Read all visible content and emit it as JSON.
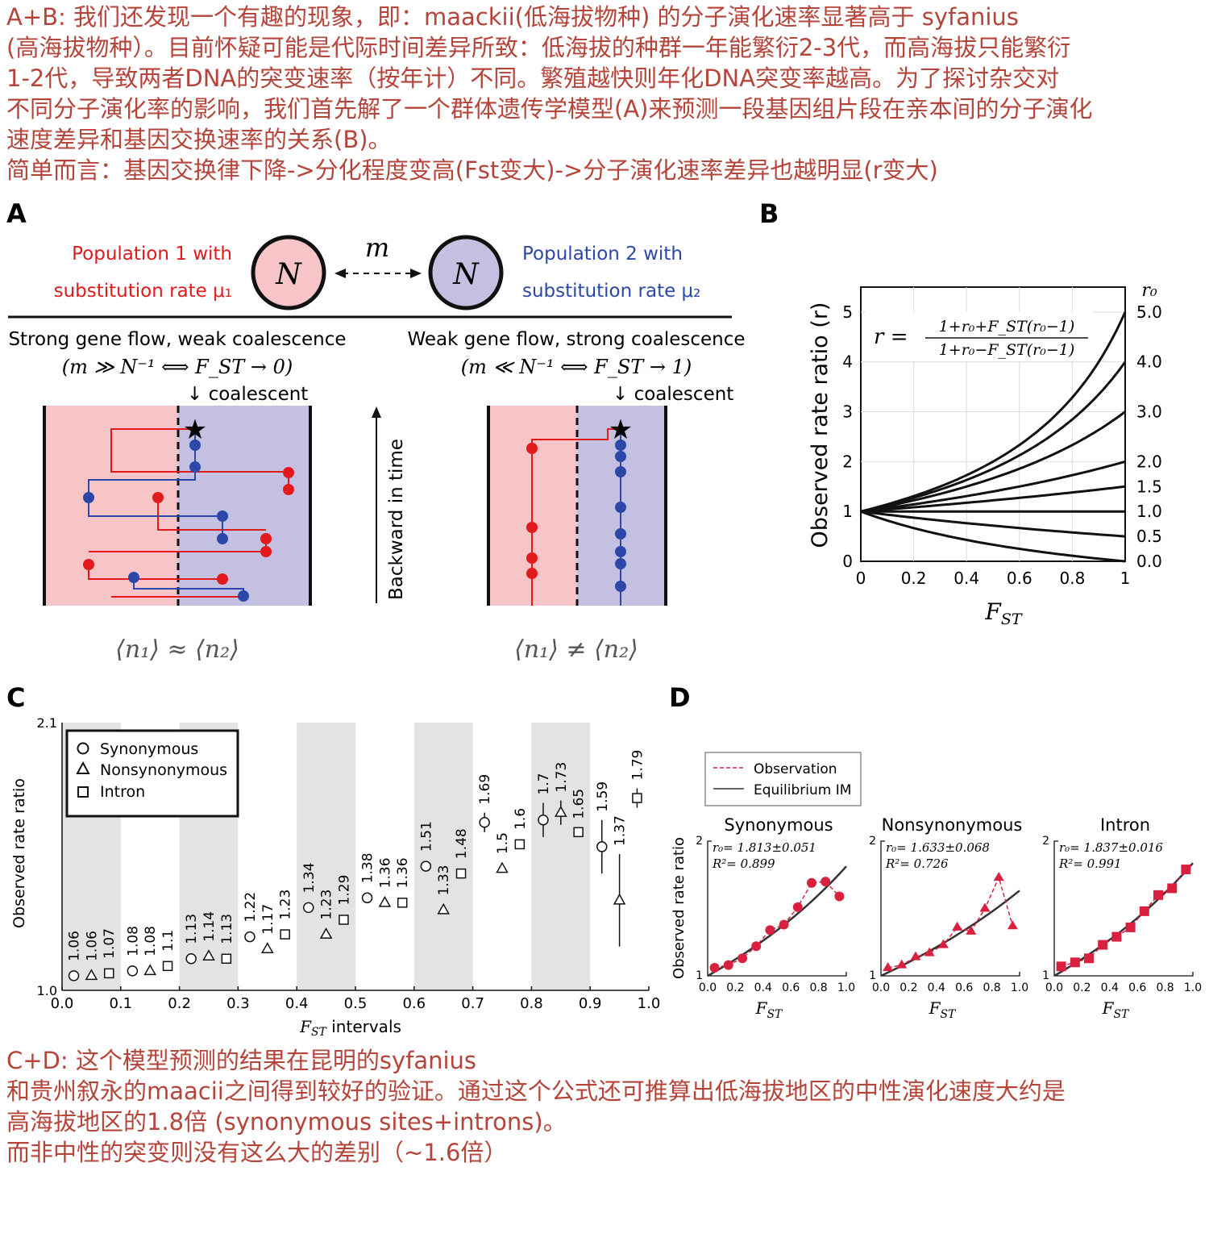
{
  "text_top": [
    "A+B: 我们还发现一个有趣的现象，即：maackii(低海拔物种) 的分子演化速率显著高于 syfanius",
    "(高海拔物种）。目前怀疑可能是代际时间差异所致：低海拔的种群一年能繁衍2-3代，而高海拔只能繁衍",
    "1-2代，导致两者DNA的突变速率（按年计）不同。繁殖越快则年化DNA突变率越高。为了探讨杂交对",
    "不同分子演化率的影响，我们首先解了一个群体遗传学模型(A)来预测一段基因组片段在亲本间的分子演化",
    "速度差异和基因交换速率的关系(B)。",
    "简单而言：基因交换律下降->分化程度变高(Fst变大)->分子演化速率差异也越明显(r变大)"
  ],
  "text_bottom": [
    "C+D: 这个模型预测的结果在昆明的syfanius",
    "和贵州叙永的maacii之间得到较好的验证。通过这个公式还可推算出低海拔地区的中性演化速度大约是",
    "高海拔地区的1.8倍 (synonymous sites+introns)。",
    "而非中性的突变则没有这么大的差别（~1.6倍）"
  ],
  "panelA": {
    "letter": "A",
    "pop1": [
      "Population 1 with",
      "substitution rate μ₁"
    ],
    "pop2": [
      "Population 2 with",
      "substitution rate μ₂"
    ],
    "node": "N",
    "migration": "m",
    "left_title": "Strong gene flow, weak coalescence",
    "left_cond": "(m ≫ N⁻¹ ⟺ F_ST → 0)",
    "right_title": "Weak gene flow, strong coalescence",
    "right_cond": "(m ≪ N⁻¹ ⟺ F_ST → 1)",
    "coalescent": "↓ coalescent",
    "time_label": "Backward in time",
    "left_result": "⟨n₁⟩ ≈ ⟨n₂⟩",
    "right_result": "⟨n₁⟩ ≠ ⟨n₂⟩",
    "colors": {
      "pop1": "#e31a1c",
      "pop2": "#2b48a8",
      "pop1_bg": "#f7c4c8",
      "pop2_bg": "#c3c0e2"
    }
  },
  "chart_data": [
    {
      "id": "B",
      "letter": "B",
      "type": "line",
      "xlabel": "F_ST",
      "ylabel": "Observed rate ratio (r)",
      "xlim": [
        0,
        1
      ],
      "ylim": [
        0,
        5.5
      ],
      "xticks": [
        "0",
        "0.2",
        "0.4",
        "0.6",
        "0.8",
        "1"
      ],
      "yticks": [
        "0",
        "1",
        "2",
        "3",
        "4",
        "5"
      ],
      "r0_header": "r₀",
      "r0_labels": [
        "5.0",
        "4.0",
        "3.0",
        "2.0",
        "1.5",
        "1.0",
        "0.5",
        "0.0"
      ],
      "r0_values": [
        5.0,
        4.0,
        3.0,
        2.0,
        1.5,
        1.0,
        0.5,
        0.0
      ],
      "formula_lhs": "r =",
      "formula_num": "1+r₀+F_ST(r₀−1)",
      "formula_den": "1+r₀−F_ST(r₀−1)",
      "grid": true
    },
    {
      "id": "C",
      "letter": "C",
      "type": "scatter",
      "xlabel": "F_ST intervals",
      "ylabel": "Observed rate ratio",
      "ylim": [
        1.0,
        2.1
      ],
      "xlim": [
        0,
        1
      ],
      "ytick_labels": [
        "1.0",
        "2.1"
      ],
      "xtick_labels": [
        "0.0",
        "0.1",
        "0.2",
        "0.3",
        "0.4",
        "0.5",
        "0.6",
        "0.7",
        "0.8",
        "0.9",
        "1.0"
      ],
      "legend": [
        "Synonymous",
        "Nonsynonymous",
        "Intron"
      ],
      "series": [
        {
          "name": "Synonymous",
          "marker": "circle",
          "x": [
            0.02,
            0.12,
            0.22,
            0.32,
            0.42,
            0.52,
            0.62,
            0.72,
            0.82,
            0.92
          ],
          "values": [
            1.06,
            1.08,
            1.13,
            1.22,
            1.34,
            1.38,
            1.51,
            1.69,
            1.7,
            1.59
          ],
          "errors": [
            0,
            0,
            0,
            0,
            0,
            0,
            0,
            0.04,
            0.07,
            0.11
          ]
        },
        {
          "name": "Nonsynonymous",
          "marker": "triangle",
          "x": [
            0.05,
            0.15,
            0.25,
            0.35,
            0.45,
            0.55,
            0.65,
            0.75,
            0.85,
            0.95
          ],
          "values": [
            1.06,
            1.08,
            1.14,
            1.17,
            1.23,
            1.36,
            1.33,
            1.5,
            1.73,
            1.37
          ],
          "errors": [
            0,
            0,
            0,
            0,
            0,
            0,
            0,
            0,
            0.05,
            0.19
          ]
        },
        {
          "name": "Intron",
          "marker": "square",
          "x": [
            0.08,
            0.18,
            0.28,
            0.38,
            0.48,
            0.58,
            0.68,
            0.78,
            0.88,
            0.98
          ],
          "values": [
            1.07,
            1.1,
            1.13,
            1.23,
            1.29,
            1.36,
            1.48,
            1.6,
            1.65,
            1.79
          ],
          "errors": [
            0,
            0,
            0,
            0,
            0,
            0,
            0,
            0,
            0.02,
            0.04
          ]
        }
      ],
      "value_labels": [
        [
          "1.06",
          "1.06",
          "1.07"
        ],
        [
          "1.08",
          "1.08",
          "1.1"
        ],
        [
          "1.13",
          "1.14",
          "1.13"
        ],
        [
          "1.22",
          "1.17",
          "1.23"
        ],
        [
          "1.34",
          "1.23",
          "1.29"
        ],
        [
          "1.38",
          "1.36",
          "1.36"
        ],
        [
          "1.51",
          "1.33",
          "1.48"
        ],
        [
          "1.69",
          "1.5",
          "1.6"
        ],
        [
          "1.7",
          "1.73",
          "1.65"
        ],
        [
          "1.59",
          "1.37",
          "1.79"
        ]
      ],
      "shaded_intervals": [
        [
          0,
          0.1
        ],
        [
          0.2,
          0.3
        ],
        [
          0.4,
          0.5
        ],
        [
          0.6,
          0.7
        ],
        [
          0.8,
          0.9
        ]
      ]
    },
    {
      "id": "D",
      "letter": "D",
      "type": "line",
      "xlabel": "F_ST",
      "ylabel": "Observed rate ratio",
      "legend": [
        "Observation",
        "Equilibrium IM"
      ],
      "ylim": [
        1,
        2
      ],
      "xlim": [
        0,
        1
      ],
      "yticks": [
        "1",
        "2"
      ],
      "xticks": [
        "0.0",
        "0.2",
        "0.4",
        "0.6",
        "0.8",
        "1.0"
      ],
      "panels": [
        {
          "title": "Synonymous",
          "marker": "circle",
          "r0": "r₀= 1.813±0.051",
          "r2": "R²= 0.899",
          "r0_value": 1.813,
          "x": [
            0.05,
            0.15,
            0.25,
            0.35,
            0.45,
            0.55,
            0.65,
            0.75,
            0.85,
            0.95
          ],
          "values": [
            1.06,
            1.08,
            1.13,
            1.22,
            1.34,
            1.38,
            1.51,
            1.69,
            1.7,
            1.59
          ]
        },
        {
          "title": "Nonsynonymous",
          "marker": "triangle",
          "r0": "r₀= 1.633±0.068",
          "r2": "R²= 0.726",
          "r0_value": 1.633,
          "x": [
            0.05,
            0.15,
            0.25,
            0.35,
            0.45,
            0.55,
            0.65,
            0.75,
            0.85,
            0.95
          ],
          "values": [
            1.06,
            1.08,
            1.14,
            1.17,
            1.23,
            1.36,
            1.33,
            1.5,
            1.73,
            1.37
          ]
        },
        {
          "title": "Intron",
          "marker": "square",
          "r0": "r₀= 1.837±0.016",
          "r2": "R²= 0.991",
          "r0_value": 1.837,
          "x": [
            0.05,
            0.15,
            0.25,
            0.35,
            0.45,
            0.55,
            0.65,
            0.75,
            0.85,
            0.95
          ],
          "values": [
            1.07,
            1.1,
            1.13,
            1.23,
            1.29,
            1.36,
            1.48,
            1.6,
            1.65,
            1.79
          ]
        }
      ],
      "colors": {
        "observation": "#d9203e",
        "fit": "#333333"
      }
    }
  ]
}
